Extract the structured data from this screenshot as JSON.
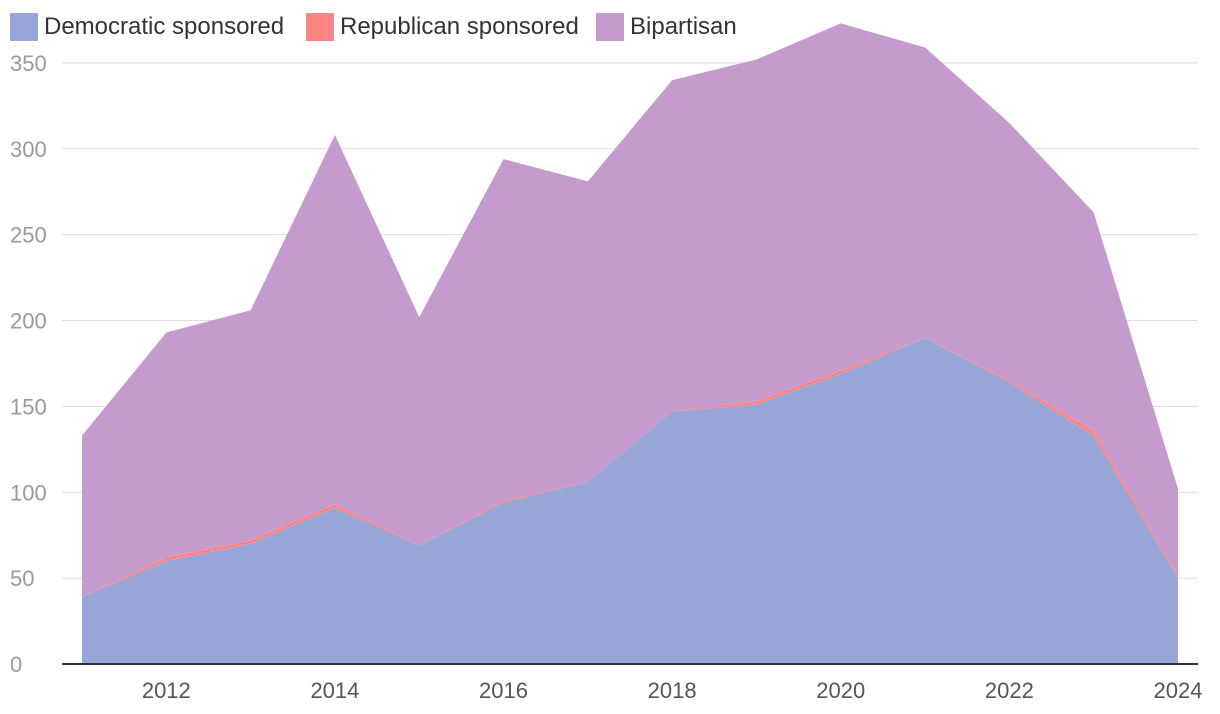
{
  "chart_data": {
    "type": "area",
    "stacked": true,
    "x": [
      2011,
      2012,
      2013,
      2014,
      2015,
      2016,
      2017,
      2018,
      2019,
      2020,
      2021,
      2022,
      2023,
      2024
    ],
    "x_tick_labels": [
      "2012",
      "2014",
      "2016",
      "2018",
      "2020",
      "2022",
      "2024"
    ],
    "y_tick_labels": [
      "0",
      "50",
      "100",
      "150",
      "200",
      "250",
      "300",
      "350"
    ],
    "ylim": [
      0,
      375
    ],
    "grid": true,
    "legend_position": "top-left",
    "series": [
      {
        "name": "Democratic sponsored",
        "color": "#97a6d6",
        "values": [
          39,
          60,
          70,
          91,
          69,
          94,
          106,
          147,
          151,
          169,
          190,
          164,
          133,
          50
        ]
      },
      {
        "name": "Republican sponsored",
        "color": "#ff8585",
        "values": [
          0,
          2,
          2,
          2,
          0,
          1,
          0,
          0,
          2,
          2,
          0,
          1,
          3,
          1
        ]
      },
      {
        "name": "Bipartisan",
        "color": "#c59acd",
        "values": [
          94,
          131,
          134,
          215,
          133,
          199,
          175,
          193,
          199,
          202,
          169,
          150,
          127,
          51
        ]
      }
    ]
  }
}
